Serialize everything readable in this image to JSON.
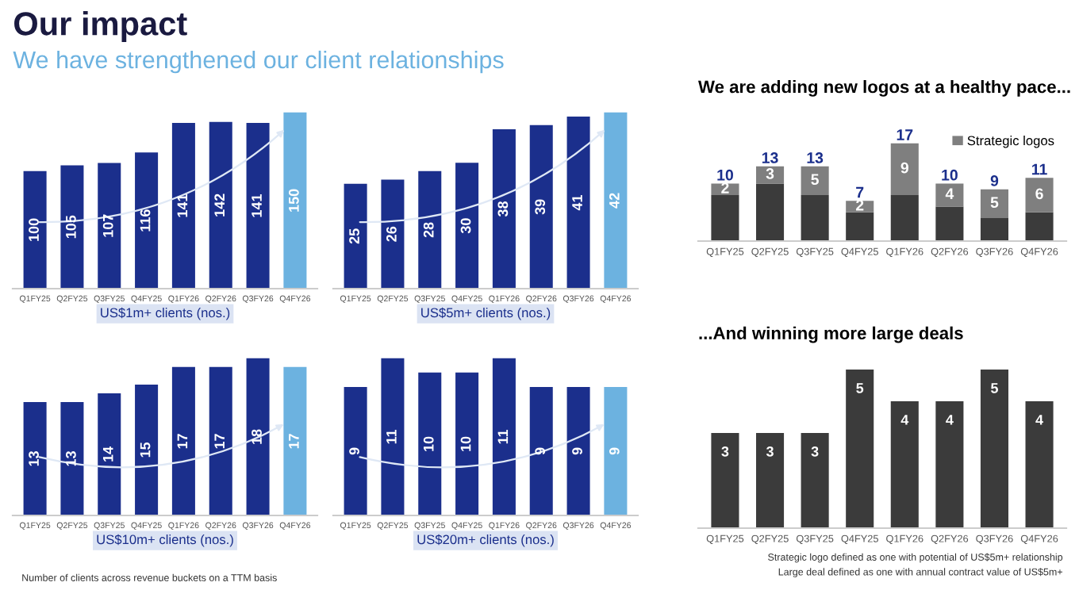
{
  "chart_data": [
    {
      "type": "bar",
      "title": "Our impact",
      "subtitle": "We have strengthened our client relationships",
      "xlabel": "US$1m+ clients (nos.)",
      "tick_labels": "x",
      "categories": [
        "Q1FY25",
        "Q2FY25",
        "Q3FY25",
        "Q4FY25",
        "Q1FY26",
        "Q2FY26",
        "Q3FY26",
        "Q4FY26"
      ],
      "values": [
        100,
        105,
        107,
        116,
        141,
        142,
        141,
        150
      ],
      "colors": [
        "#1b2f8c",
        "#1b2f8c",
        "#1b2f8c",
        "#1b2f8c",
        "#1b2f8c",
        "#1b2f8c",
        "#1b2f8c",
        "#6cb2e0"
      ],
      "data_labels": true
    },
    {
      "type": "bar",
      "xlabel": "US$5m+ clients (nos.)",
      "tick_labels": "x",
      "categories": [
        "Q1FY25",
        "Q2FY25",
        "Q3FY25",
        "Q4FY25",
        "Q1FY26",
        "Q2FY26",
        "Q3FY26",
        "Q4FY26"
      ],
      "values": [
        25,
        26,
        28,
        30,
        38,
        39,
        41,
        42
      ],
      "colors": [
        "#1b2f8c",
        "#1b2f8c",
        "#1b2f8c",
        "#1b2f8c",
        "#1b2f8c",
        "#1b2f8c",
        "#1b2f8c",
        "#6cb2e0"
      ],
      "data_labels": true
    },
    {
      "type": "bar",
      "xlabel": "US$10m+ clients (nos.)",
      "tick_labels": "x",
      "annotations": [
        "Number of clients across revenue buckets on a TTM basis"
      ],
      "categories": [
        "Q1FY25",
        "Q2FY25",
        "Q3FY25",
        "Q4FY25",
        "Q1FY26",
        "Q2FY26",
        "Q3FY26",
        "Q4FY26"
      ],
      "values": [
        13,
        13,
        14,
        15,
        17,
        17,
        18,
        17
      ],
      "colors": [
        "#1b2f8c",
        "#1b2f8c",
        "#1b2f8c",
        "#1b2f8c",
        "#1b2f8c",
        "#1b2f8c",
        "#1b2f8c",
        "#6cb2e0"
      ],
      "data_labels": true
    },
    {
      "type": "bar",
      "xlabel": "US$20m+ clients (nos.)",
      "tick_labels": "x",
      "categories": [
        "Q1FY25",
        "Q2FY25",
        "Q3FY25",
        "Q4FY25",
        "Q1FY26",
        "Q2FY26",
        "Q3FY26",
        "Q4FY26"
      ],
      "values": [
        9,
        11,
        10,
        10,
        11,
        9,
        9,
        9
      ],
      "colors": [
        "#1b2f8c",
        "#1b2f8c",
        "#1b2f8c",
        "#1b2f8c",
        "#1b2f8c",
        "#1b2f8c",
        "#1b2f8c",
        "#6cb2e0"
      ],
      "data_labels": true
    },
    {
      "type": "bar",
      "title": "We are adding new logos at a healthy pace...",
      "stacked": true,
      "tick_labels": "x",
      "legend": "top right",
      "categories": [
        "Q1FY25",
        "Q2FY25",
        "Q3FY25",
        "Q4FY25",
        "Q1FY26",
        "Q2FY26",
        "Q3FY26",
        "Q4FY26"
      ],
      "series": [
        {
          "color": "#3b3b3b",
          "values": [
            8,
            10,
            8,
            5,
            8,
            6,
            4,
            5
          ]
        },
        {
          "name": "Strategic logos",
          "color": "#7f7f7f",
          "values": [
            2,
            3,
            5,
            2,
            9,
            4,
            5,
            6
          ],
          "value_labels": [
            "2",
            "3",
            "5",
            "2",
            "9",
            "4",
            "5",
            "6"
          ]
        }
      ],
      "totals": [
        "10",
        "13",
        "13",
        "7",
        "17",
        "10",
        "9",
        "11"
      ]
    },
    {
      "type": "bar",
      "title": "...And winning more large deals",
      "tick_labels": "x",
      "annotations": [
        "Strategic logo defined as one with potential of US$5m+ relationship",
        "Large deal defined as one with annual contract value of US$5m+"
      ],
      "categories": [
        "Q1FY25",
        "Q2FY25",
        "Q3FY25",
        "Q4FY25",
        "Q1FY26",
        "Q2FY26",
        "Q3FY26",
        "Q4FY26"
      ],
      "values": [
        3,
        3,
        3,
        5,
        4,
        4,
        5,
        4
      ],
      "colors": [
        "#3b3b3b",
        "#3b3b3b",
        "#3b3b3b",
        "#3b3b3b",
        "#3b3b3b",
        "#3b3b3b",
        "#3b3b3b",
        "#3b3b3b"
      ],
      "data_labels": true
    }
  ]
}
